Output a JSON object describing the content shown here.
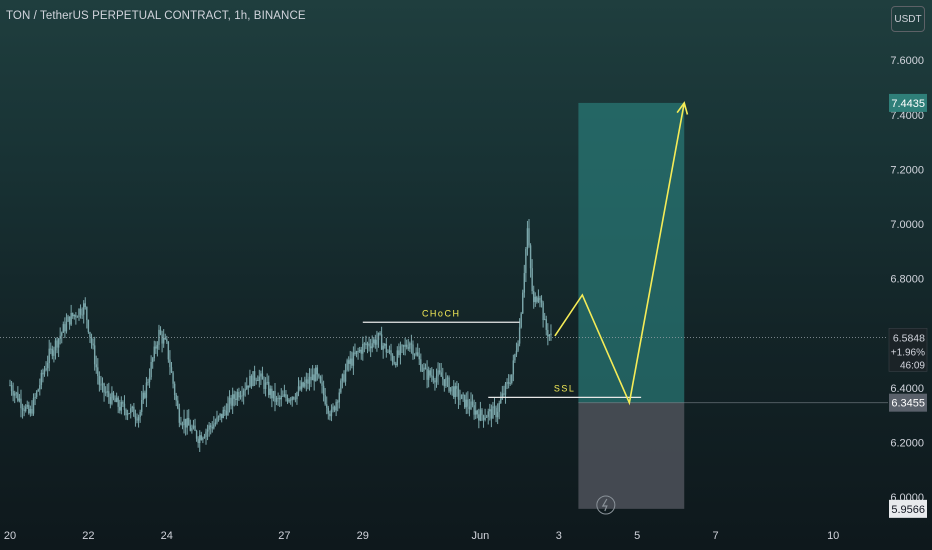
{
  "header": {
    "title": "TON / TetherUS PERPETUAL CONTRACT, 1h, BINANCE",
    "currency": "USDT"
  },
  "chart_data": {
    "type": "candlestick",
    "title": "TON / TetherUS PERPETUAL CONTRACT, 1h, BINANCE",
    "y_unit": "USDT",
    "ylim": [
      5.9566,
      7.85
    ],
    "y_ticks": [
      "6.0000",
      "6.2000",
      "6.4000",
      "6.6000",
      "6.8000",
      "7.0000",
      "7.2000",
      "7.4000",
      "7.6000"
    ],
    "x_ticks": [
      "20",
      "22",
      "24",
      "27",
      "29",
      "Jun",
      "3",
      "5",
      "7",
      "10"
    ],
    "price_series": {
      "name": "TON/USDT",
      "x": [
        20.0,
        20.5,
        21.0,
        21.5,
        21.9,
        22.3,
        22.8,
        23.3,
        23.8,
        24.0,
        24.3,
        24.8,
        25.3,
        25.8,
        26.3,
        26.8,
        27.3,
        27.8,
        28.2,
        28.6,
        29.0,
        29.4,
        29.8,
        30.2,
        30.6,
        31.0,
        31.5,
        32.0,
        32.4,
        32.8,
        33.0,
        33.2,
        33.35,
        33.5,
        33.65,
        33.8
      ],
      "close": [
        6.41,
        6.3,
        6.52,
        6.65,
        6.7,
        6.4,
        6.33,
        6.3,
        6.6,
        6.55,
        6.3,
        6.22,
        6.28,
        6.38,
        6.45,
        6.35,
        6.38,
        6.45,
        6.3,
        6.48,
        6.55,
        6.58,
        6.5,
        6.57,
        6.45,
        6.44,
        6.36,
        6.3,
        6.31,
        6.45,
        6.62,
        6.98,
        6.7,
        6.76,
        6.62,
        6.5848
      ]
    },
    "projection": {
      "name": "projected path",
      "x": [
        33.9,
        34.6,
        35.8,
        37.2
      ],
      "y": [
        6.59,
        6.74,
        6.345,
        7.4435
      ]
    },
    "annotations": [
      {
        "label": "CHoCH",
        "x_start": 29.0,
        "x_end": 33.0,
        "y": 6.64
      },
      {
        "label": "SSL",
        "x_start": 32.2,
        "x_end": 36.1,
        "y": 6.365
      }
    ],
    "position": {
      "x_start": 34.5,
      "x_end": 37.2,
      "entry": 6.3455,
      "target": 7.4435,
      "stop": 5.9566
    },
    "last_price": {
      "value": "6.5848",
      "change": "+1.96%",
      "countdown": "46:09"
    },
    "price_labels": {
      "target": "7.4435",
      "entry": "6.3455",
      "stop": "5.9566"
    },
    "colors": {
      "profit_zone": "#2a7a78",
      "loss_zone": "#4a4f57",
      "candle": "#7ba7ab",
      "arrow": "#f5ec57",
      "annotation": "#e8e8e8"
    }
  }
}
